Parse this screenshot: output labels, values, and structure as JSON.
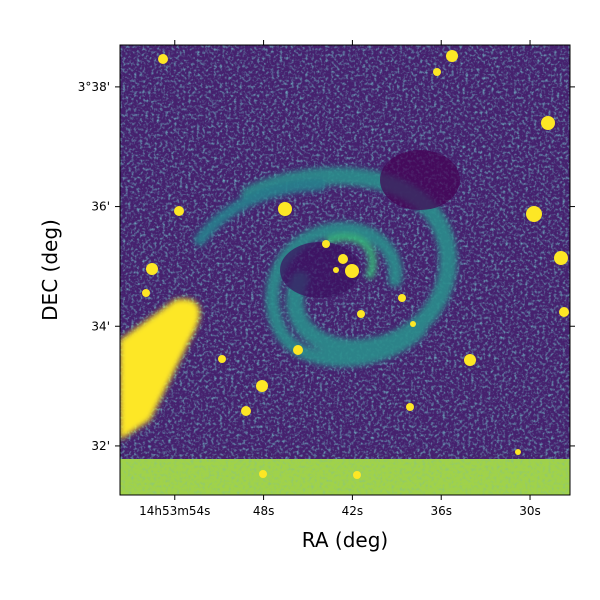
{
  "chart_data": {
    "type": "image",
    "x_label": "RA (deg)",
    "y_label": "DEC (deg)",
    "xlim": [
      57.7,
      27.3
    ],
    "xticks": [
      {
        "value": 54,
        "label": "14h53m54s"
      },
      {
        "value": 48,
        "label": "48s"
      },
      {
        "value": 42,
        "label": "42s"
      },
      {
        "value": 36,
        "label": "36s"
      },
      {
        "value": 30,
        "label": "30s"
      }
    ],
    "ylim": [
      31.18,
      38.7
    ],
    "yticks": [
      {
        "value": 32,
        "label": "32'"
      },
      {
        "value": 34,
        "label": "34'"
      },
      {
        "value": 36,
        "label": "36'"
      },
      {
        "value": 38,
        "label": "3°38'"
      }
    ],
    "colormap": "viridis"
  }
}
